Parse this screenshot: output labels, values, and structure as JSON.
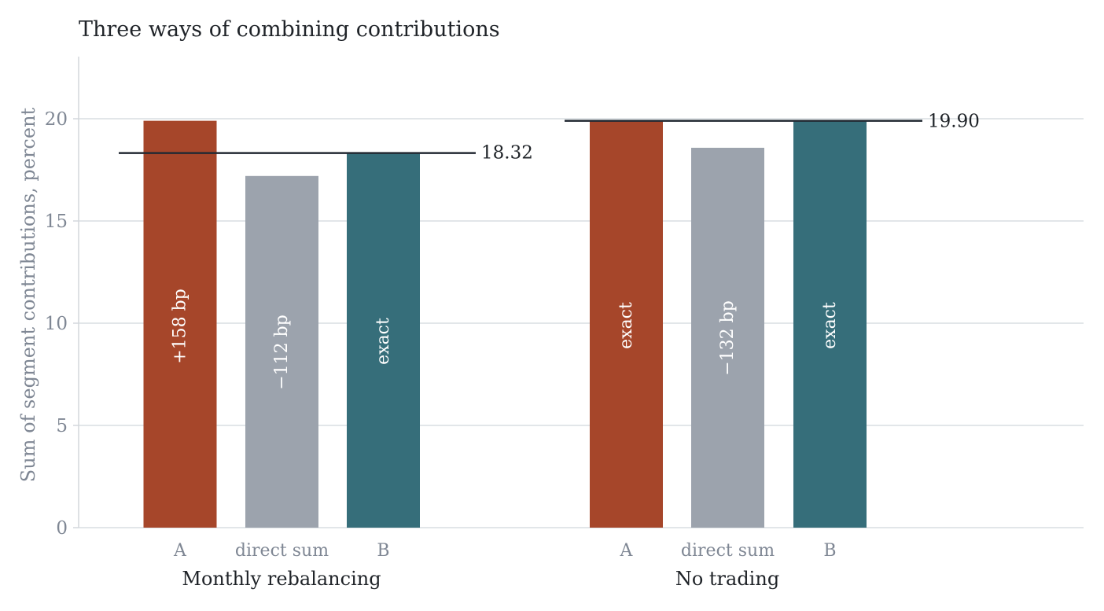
{
  "chart_data": {
    "type": "bar",
    "title": "Three ways of combining contributions",
    "ylabel": "Sum of segment contributions, percent",
    "ylim": [
      0,
      22
    ],
    "yticks": [
      0,
      5,
      10,
      15,
      20
    ],
    "grid": true,
    "colors": {
      "A": "#a6462a",
      "direct sum": "#9ca3ad",
      "B": "#366e7a",
      "reference_line": "#232a33"
    },
    "groups": [
      {
        "name": "Monthly rebalancing",
        "reference": {
          "value": 18.32,
          "label": "18.32"
        },
        "bars": [
          {
            "category": "A",
            "value": 19.9,
            "label": "+158 bp"
          },
          {
            "category": "direct sum",
            "value": 17.2,
            "label": "−112 bp"
          },
          {
            "category": "B",
            "value": 18.32,
            "label": "exact"
          }
        ]
      },
      {
        "name": "No trading",
        "reference": {
          "value": 19.9,
          "label": "19.90"
        },
        "bars": [
          {
            "category": "A",
            "value": 19.9,
            "label": "exact"
          },
          {
            "category": "direct sum",
            "value": 18.58,
            "label": "−132 bp"
          },
          {
            "category": "B",
            "value": 19.9,
            "label": "exact"
          }
        ]
      }
    ]
  }
}
